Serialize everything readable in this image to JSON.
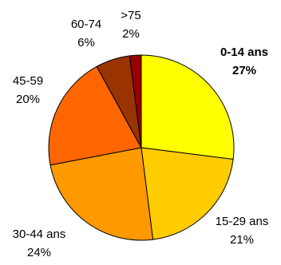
{
  "chart_data": {
    "type": "pie",
    "title": "",
    "legend": "none",
    "slices": [
      {
        "label": "0-14 ans",
        "value": 27,
        "display": "27%",
        "color": "#ffff00",
        "bold": true
      },
      {
        "label": "15-29 ans",
        "value": 21,
        "display": "21%",
        "color": "#ffcc00",
        "bold": false
      },
      {
        "label": "30-44 ans",
        "value": 24,
        "display": "24%",
        "color": "#ff9900",
        "bold": false
      },
      {
        "label": "45-59",
        "value": 20,
        "display": "20%",
        "color": "#ff6600",
        "bold": false
      },
      {
        "label": "60-74",
        "value": 6,
        "display": "6%",
        "color": "#993300",
        "bold": false
      },
      {
        "label": ">75",
        "value": 2,
        "display": "2%",
        "color": "#990000",
        "bold": false
      }
    ]
  }
}
